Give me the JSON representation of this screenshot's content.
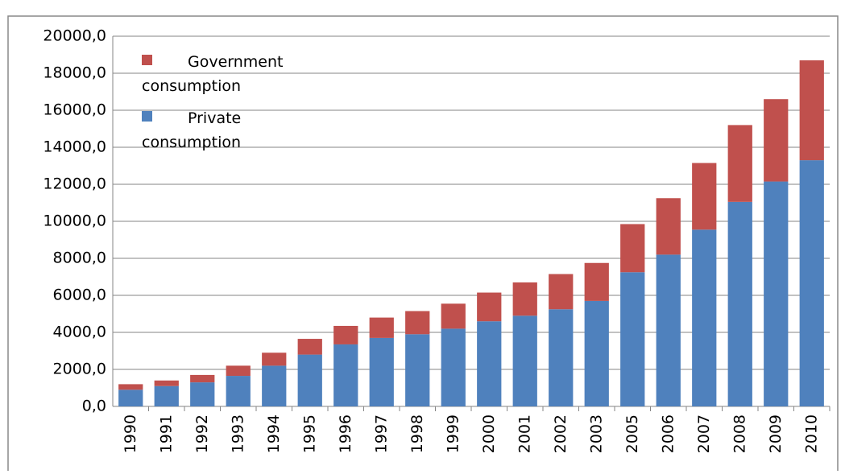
{
  "chart_data": {
    "type": "stacked_bar",
    "categories": [
      "1990",
      "1991",
      "1992",
      "1993",
      "1994",
      "1995",
      "1996",
      "1997",
      "1998",
      "1999",
      "2000",
      "2001",
      "2002",
      "2003",
      "2005",
      "2006",
      "2007",
      "2008",
      "2009",
      "2010"
    ],
    "series": [
      {
        "name": "Private consumption",
        "color": "#4f81bd",
        "values": [
          900,
          1100,
          1300,
          1650,
          2200,
          2800,
          3350,
          3700,
          3900,
          4200,
          4600,
          4900,
          5250,
          5700,
          7250,
          8200,
          9550,
          11050,
          12150,
          13300
        ]
      },
      {
        "name": "Government consumption",
        "color": "#c0504d",
        "values": [
          300,
          300,
          400,
          550,
          700,
          850,
          1000,
          1100,
          1250,
          1350,
          1550,
          1800,
          1900,
          2050,
          2600,
          3050,
          3600,
          4150,
          4450,
          5400
        ]
      }
    ],
    "ylim": [
      0,
      20000
    ],
    "yticks": [
      {
        "value": 0,
        "label": "0,0"
      },
      {
        "value": 2000,
        "label": "2000,0"
      },
      {
        "value": 4000,
        "label": "4000,0"
      },
      {
        "value": 6000,
        "label": "6000,0"
      },
      {
        "value": 8000,
        "label": "8000,0"
      },
      {
        "value": 10000,
        "label": "10000,0"
      },
      {
        "value": 12000,
        "label": "12000,0"
      },
      {
        "value": 14000,
        "label": "14000,0"
      },
      {
        "value": 16000,
        "label": "16000,0"
      },
      {
        "value": 18000,
        "label": "18000,0"
      },
      {
        "value": 20000,
        "label": "20000,0"
      }
    ],
    "grid": true,
    "legend": "top-left"
  }
}
